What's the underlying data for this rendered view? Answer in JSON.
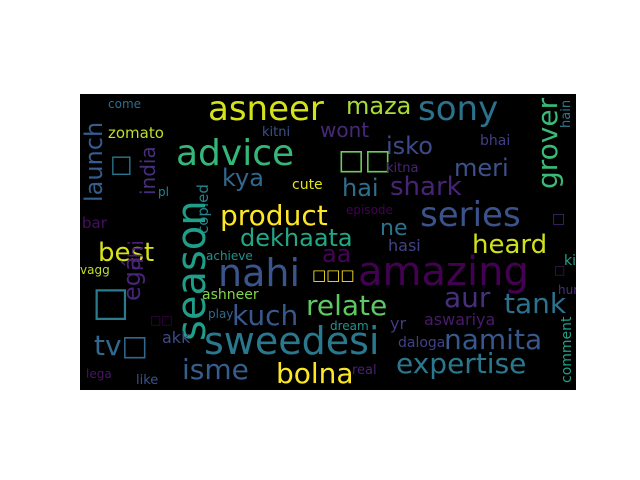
{
  "wordcloud": {
    "background": "#000000",
    "words": [
      {
        "text": "asneer",
        "color": "#d5e21a"
      },
      {
        "text": "maza",
        "color": "#a8db34"
      },
      {
        "text": "sony",
        "color": "#2c728e"
      },
      {
        "text": "grover",
        "color": "#3aba76"
      },
      {
        "text": "launch",
        "color": "#365c8d"
      },
      {
        "text": "come",
        "color": "#2e6e8e"
      },
      {
        "text": "zomato",
        "color": "#bddf26"
      },
      {
        "text": "wont",
        "color": "#482878"
      },
      {
        "text": "kitni",
        "color": "#3b528b"
      },
      {
        "text": "isko",
        "color": "#3e4989"
      },
      {
        "text": "bhai",
        "color": "#433e85"
      },
      {
        "text": "hain",
        "color": "#2a788e"
      },
      {
        "text": "advice",
        "color": "#35b779"
      },
      {
        "text": "□□",
        "color": "#6ccd5a"
      },
      {
        "text": "□",
        "color": "#2a788e"
      },
      {
        "text": "india",
        "color": "#472f7d"
      },
      {
        "text": "kya",
        "color": "#31688e"
      },
      {
        "text": "meri",
        "color": "#3b528b"
      },
      {
        "text": "kitna",
        "color": "#482576"
      },
      {
        "text": "hai",
        "color": "#2e6f8e"
      },
      {
        "text": "shark",
        "color": "#482475"
      },
      {
        "text": "pl",
        "color": "#26828e"
      },
      {
        "text": "cute",
        "color": "#e2e418"
      },
      {
        "text": "copied",
        "color": "#25838e"
      },
      {
        "text": "product",
        "color": "#fde725"
      },
      {
        "text": "series",
        "color": "#3b528b"
      },
      {
        "text": "season",
        "color": "#1f9e89"
      },
      {
        "text": "episode",
        "color": "#440154"
      },
      {
        "text": "bar",
        "color": "#471063"
      },
      {
        "text": "dekhaata",
        "color": "#22a884"
      },
      {
        "text": "ne",
        "color": "#2c728e"
      },
      {
        "text": "□",
        "color": "#482878"
      },
      {
        "text": "best",
        "color": "#d8e219"
      },
      {
        "text": "hasi",
        "color": "#414487"
      },
      {
        "text": "heard",
        "color": "#d0e11c"
      },
      {
        "text": "aa",
        "color": "#450457"
      },
      {
        "text": "amazing",
        "color": "#440154"
      },
      {
        "text": "nhi",
        "color": "#481f70"
      },
      {
        "text": "achieve",
        "color": "#1f948c"
      },
      {
        "text": "nahi",
        "color": "#39558c"
      },
      {
        "text": "egá",
        "color": "#482475"
      },
      {
        "text": "vagg",
        "color": "#bddf26"
      },
      {
        "text": "□□□",
        "color": "#fde725"
      },
      {
        "text": "ki",
        "color": "#20a386"
      },
      {
        "text": "□",
        "color": "#287c8e"
      },
      {
        "text": "□",
        "color": "#481a6c"
      },
      {
        "text": "aur",
        "color": "#46307e"
      },
      {
        "text": "ashneer",
        "color": "#84d44b"
      },
      {
        "text": "relate",
        "color": "#5ec962"
      },
      {
        "text": "tank",
        "color": "#2c728e"
      },
      {
        "text": "hum",
        "color": "#46327e"
      },
      {
        "text": "kuch",
        "color": "#38588c"
      },
      {
        "text": "play",
        "color": "#30698e"
      },
      {
        "text": "□□",
        "color": "#440154"
      },
      {
        "text": "dream",
        "color": "#1f958b"
      },
      {
        "text": "yr",
        "color": "#453882"
      },
      {
        "text": "aswariya",
        "color": "#481a6c"
      },
      {
        "text": "akk",
        "color": "#3e4a89"
      },
      {
        "text": "tv□",
        "color": "#31688e"
      },
      {
        "text": "sweedesi",
        "color": "#2a788e"
      },
      {
        "text": "daloga",
        "color": "#424086"
      },
      {
        "text": "namita",
        "color": "#38588c"
      },
      {
        "text": "comment",
        "color": "#1fa088"
      },
      {
        "text": "isme",
        "color": "#365d8d"
      },
      {
        "text": "bolna",
        "color": "#fde725"
      },
      {
        "text": "expertise",
        "color": "#2a788e"
      },
      {
        "text": "lega",
        "color": "#481668"
      },
      {
        "text": "like",
        "color": "#3b528b"
      },
      {
        "text": "real",
        "color": "#482173"
      }
    ]
  }
}
